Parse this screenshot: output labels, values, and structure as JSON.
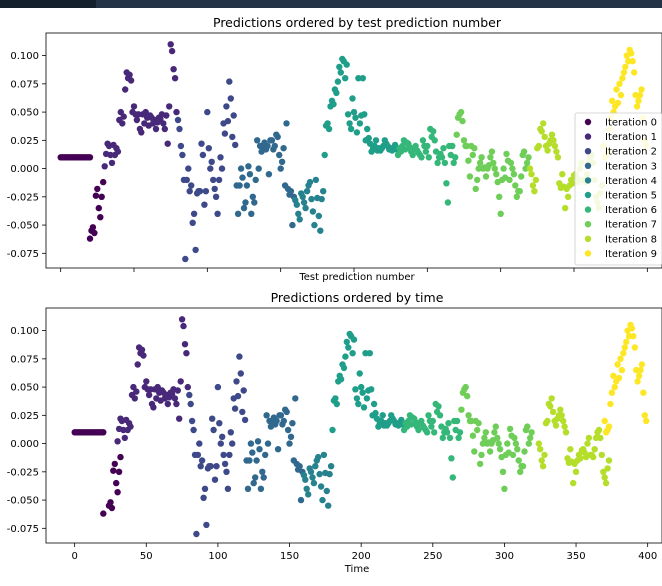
{
  "window": {
    "tab_label": ""
  },
  "colors": [
    "#440154",
    "#482878",
    "#3e4989",
    "#31688e",
    "#26828e",
    "#1f9e89",
    "#35b779",
    "#6ece58",
    "#b5de2b",
    "#fde725"
  ],
  "chart_data": [
    {
      "type": "scatter",
      "title": "Predictions ordered by test prediction number",
      "xlabel": "Test prediction number",
      "ylabel": "",
      "ylim": [
        -0.088,
        0.12
      ],
      "xlim": [
        -10,
        410
      ],
      "x_ticks": [],
      "y_ticks": [
        "0.100",
        "0.075",
        "0.050",
        "0.025",
        "0.000",
        "-0.025",
        "-0.050",
        "-0.075"
      ],
      "y_tick_values": [
        0.1,
        0.075,
        0.05,
        0.025,
        0.0,
        -0.025,
        -0.05,
        -0.075
      ],
      "legend": "right",
      "series": [
        {
          "name": "Iteration 0",
          "x": [
            0,
            1,
            2,
            3,
            4,
            5,
            6,
            7,
            8,
            9,
            10,
            11,
            12,
            13,
            14,
            15,
            16,
            17,
            18,
            19,
            20,
            20,
            21,
            22,
            23,
            24,
            25,
            26,
            27,
            28,
            29
          ],
          "y": [
            0.01,
            0.01,
            0.01,
            0.01,
            0.01,
            0.01,
            0.01,
            0.01,
            0.01,
            0.01,
            0.01,
            0.01,
            0.01,
            0.01,
            0.01,
            0.01,
            0.01,
            0.01,
            0.01,
            0.01,
            0.01,
            -0.062,
            -0.055,
            -0.052,
            -0.057,
            -0.024,
            -0.018,
            -0.035,
            -0.043,
            -0.025,
            -0.012
          ]
        },
        {
          "name": "Iteration 1",
          "x": [
            30,
            31,
            32,
            33,
            34,
            35,
            36,
            37,
            38,
            39,
            40,
            41,
            42,
            43,
            44,
            45,
            46,
            47,
            48,
            49,
            50,
            51,
            52,
            53,
            54,
            55,
            56,
            57,
            58,
            59,
            60,
            61,
            62,
            63,
            64,
            65,
            66,
            67,
            68,
            69,
            70,
            71,
            72,
            73,
            74,
            75,
            76,
            77,
            78,
            79
          ],
          "y": [
            0.002,
            0.013,
            0.022,
            0.02,
            0.012,
            0.005,
            0.021,
            0.012,
            0.018,
            0.015,
            0.043,
            0.05,
            0.04,
            0.046,
            0.07,
            0.085,
            0.08,
            0.083,
            0.078,
            0.05,
            0.055,
            0.048,
            0.043,
            0.048,
            0.035,
            0.032,
            0.048,
            0.04,
            0.05,
            0.045,
            0.038,
            0.047,
            0.045,
            0.04,
            0.043,
            0.035,
            0.041,
            0.045,
            0.044,
            0.048,
            0.04,
            0.035,
            0.047,
            0.022,
            0.055,
            0.11,
            0.104,
            0.088,
            0.08,
            0.05
          ]
        },
        {
          "name": "Iteration 2",
          "x": [
            80,
            81,
            82,
            83,
            84,
            85,
            86,
            87,
            88,
            89,
            90,
            91,
            92,
            93,
            94,
            95,
            96,
            97,
            98,
            99,
            100,
            101,
            102,
            103,
            104,
            105,
            106,
            107,
            108,
            109,
            110,
            111,
            112,
            113,
            114,
            115,
            116,
            117,
            118,
            119
          ],
          "y": [
            0.043,
            0.035,
            0.02,
            0.012,
            -0.01,
            -0.08,
            -0.01,
            0.0,
            -0.02,
            -0.015,
            -0.048,
            -0.04,
            -0.072,
            -0.022,
            -0.02,
            -0.02,
            0.022,
            0.012,
            -0.032,
            -0.02,
            0.05,
            0.018,
            0.0,
            0.006,
            -0.01,
            -0.018,
            -0.025,
            -0.04,
            -0.01,
            0.01,
            0.0,
            0.04,
            0.031,
            0.055,
            0.042,
            0.077,
            0.062,
            0.028,
            0.047,
            0.021
          ]
        },
        {
          "name": "Iteration 3",
          "x": [
            120,
            121,
            122,
            123,
            124,
            125,
            126,
            127,
            128,
            129,
            130,
            131,
            132,
            133,
            134,
            135,
            136,
            137,
            138,
            139,
            140,
            141,
            142,
            143,
            144,
            145,
            146,
            147,
            148,
            149,
            150,
            151,
            152,
            153,
            154,
            155,
            156,
            157,
            158,
            159
          ],
          "y": [
            -0.015,
            -0.04,
            -0.015,
            0.0,
            -0.008,
            -0.035,
            -0.03,
            -0.015,
            0.002,
            -0.005,
            -0.04,
            -0.025,
            -0.03,
            -0.01,
            0.025,
            0.0,
            0.02,
            0.015,
            0.02,
            0.023,
            0.017,
            0.02,
            -0.005,
            0.025,
            0.025,
            0.017,
            0.02,
            0.03,
            0.028,
            0.012,
            0.0,
            0.006,
            0.018,
            -0.015,
            0.04,
            -0.018,
            -0.023,
            -0.02,
            -0.05,
            -0.025
          ]
        },
        {
          "name": "Iteration 4",
          "x": [
            160,
            161,
            162,
            163,
            164,
            165,
            166,
            167,
            168,
            169,
            170,
            171,
            172,
            173,
            174,
            175,
            176,
            177,
            178,
            179
          ],
          "y": [
            -0.028,
            -0.032,
            -0.04,
            -0.045,
            -0.022,
            -0.025,
            -0.03,
            -0.035,
            -0.02,
            -0.015,
            -0.012,
            -0.027,
            -0.038,
            -0.05,
            -0.01,
            -0.026,
            -0.042,
            -0.055,
            -0.027,
            -0.02
          ]
        },
        {
          "name": "Iteration 5",
          "x": [
            180,
            181,
            182,
            183,
            184,
            185,
            186,
            187,
            188,
            189,
            190,
            191,
            192,
            193,
            194,
            195,
            196,
            197,
            198,
            199,
            200,
            201,
            202,
            203,
            204,
            205,
            206,
            207,
            208,
            209,
            210,
            211,
            212,
            213,
            214,
            215,
            216,
            217,
            218,
            219,
            220,
            221,
            222,
            223,
            224,
            225,
            226,
            227,
            228,
            229
          ],
          "y": [
            0.012,
            0.038,
            0.04,
            0.035,
            0.055,
            0.06,
            0.057,
            0.07,
            0.067,
            0.077,
            0.09,
            0.085,
            0.097,
            0.095,
            0.08,
            0.092,
            0.048,
            0.04,
            0.035,
            0.062,
            0.05,
            0.045,
            0.032,
            0.08,
            0.04,
            0.047,
            0.08,
            0.048,
            0.025,
            0.035,
            0.027,
            0.022,
            0.015,
            0.018,
            0.02,
            0.025,
            0.016,
            0.018,
            0.016,
            0.018,
            0.02,
            0.025,
            0.022,
            0.02,
            0.017,
            0.018,
            0.016,
            0.018,
            0.021,
            0.017
          ]
        },
        {
          "name": "Iteration 6",
          "x": [
            230,
            231,
            232,
            233,
            234,
            235,
            236,
            237,
            238,
            239,
            240,
            241,
            242,
            243,
            244,
            245,
            246,
            247,
            248,
            249,
            250,
            251,
            252,
            253,
            254,
            255,
            256,
            257,
            258,
            259,
            260,
            261,
            262,
            263,
            264,
            265,
            266,
            267,
            268,
            269
          ],
          "y": [
            0.012,
            0.018,
            0.015,
            0.02,
            0.025,
            0.017,
            0.023,
            0.022,
            0.019,
            0.015,
            0.012,
            0.018,
            0.02,
            0.016,
            0.014,
            0.012,
            0.01,
            0.025,
            0.02,
            0.015,
            0.02,
            0.01,
            0.035,
            0.028,
            0.033,
            0.025,
            0.015,
            0.005,
            0.01,
            0.013,
            0.01,
            0.018,
            0.005,
            -0.013,
            -0.03,
            0.02,
            0.012,
            0.02,
            0.005,
            0.01
          ]
        },
        {
          "name": "Iteration 7",
          "x": [
            270,
            271,
            272,
            273,
            274,
            275,
            276,
            277,
            278,
            279,
            280,
            281,
            282,
            283,
            284,
            285,
            286,
            287,
            288,
            289,
            290,
            291,
            292,
            293,
            294,
            295,
            296,
            297,
            298,
            299,
            300,
            301,
            302,
            303,
            304,
            305,
            306,
            307,
            308,
            309,
            310,
            311,
            312,
            313,
            314,
            315,
            316,
            317,
            318,
            319
          ],
          "y": [
            0.03,
            0.045,
            0.048,
            0.05,
            0.042,
            0.025,
            0.02,
            0.02,
            0.007,
            -0.007,
            0.02,
            0.012,
            0.018,
            -0.018,
            -0.01,
            0.0,
            0.005,
            0.01,
            0.0,
            0.001,
            -0.007,
            0.0,
            0.003,
            0.01,
            0.015,
            0.005,
            0.0,
            -0.005,
            -0.012,
            -0.025,
            -0.04,
            -0.01,
            0.0,
            -0.008,
            0.013,
            0.007,
            -0.01,
            0.005,
            0.0,
            -0.005,
            -0.015,
            -0.025,
            -0.02,
            -0.02,
            -0.007,
            0.012,
            0.015,
            0.0,
            0.005,
            0.01
          ]
        },
        {
          "name": "Iteration 8",
          "x": [
            320,
            321,
            322,
            323,
            324,
            325,
            326,
            327,
            328,
            329,
            330,
            331,
            332,
            333,
            334,
            335,
            336,
            337,
            338,
            339,
            340,
            341,
            342,
            343,
            344,
            345,
            346,
            347,
            348,
            349,
            350,
            351,
            352,
            353,
            354,
            355,
            356,
            357,
            358,
            359,
            360,
            361,
            362,
            363,
            364,
            365,
            366,
            367,
            368,
            369
          ],
          "y": [
            0.0,
            -0.005,
            -0.015,
            -0.02,
            -0.01,
            0.018,
            0.02,
            0.035,
            0.033,
            0.04,
            0.028,
            0.02,
            0.016,
            0.022,
            0.025,
            0.03,
            0.025,
            0.02,
            0.015,
            0.01,
            -0.013,
            -0.017,
            -0.005,
            -0.016,
            -0.035,
            -0.018,
            -0.025,
            -0.015,
            -0.01,
            -0.013,
            -0.006,
            -0.005,
            -0.008,
            -0.012,
            0.0,
            0.005,
            -0.01,
            -0.01,
            -0.012,
            -0.005,
            0.005,
            0.01,
            0.012,
            0.005,
            -0.01,
            -0.025,
            -0.03,
            -0.035,
            -0.022,
            -0.015
          ]
        },
        {
          "name": "Iteration 9",
          "x": [
            370,
            371,
            372,
            373,
            374,
            375,
            376,
            377,
            378,
            379,
            380,
            381,
            382,
            383,
            384,
            385,
            386,
            387,
            388,
            389,
            390,
            391,
            392,
            393,
            394,
            395,
            396,
            397,
            398,
            399
          ],
          "y": [
            0.02,
            0.01,
            0.012,
            0.015,
            0.035,
            0.045,
            0.06,
            0.05,
            0.055,
            0.07,
            0.058,
            0.075,
            0.065,
            0.08,
            0.085,
            0.09,
            0.1,
            0.095,
            0.105,
            0.102,
            0.095,
            0.085,
            0.065,
            0.055,
            0.06,
            0.065,
            0.07,
            0.045,
            0.025,
            0.02
          ]
        }
      ]
    },
    {
      "type": "scatter",
      "title": "Predictions ordered by time",
      "xlabel": "Time",
      "ylabel": "",
      "ylim": [
        -0.088,
        0.12
      ],
      "xlim": [
        -20,
        410
      ],
      "x_ticks": [
        "0",
        "50",
        "100",
        "150",
        "200",
        "250",
        "300",
        "350",
        "400"
      ],
      "x_tick_values": [
        0,
        50,
        100,
        150,
        200,
        250,
        300,
        350,
        400
      ],
      "y_ticks": [
        "0.100",
        "0.075",
        "0.050",
        "0.025",
        "0.000",
        "-0.025",
        "-0.050",
        "-0.075"
      ],
      "y_tick_values": [
        0.1,
        0.075,
        0.05,
        0.025,
        0.0,
        -0.025,
        -0.05,
        -0.075
      ],
      "legend": "none"
    }
  ]
}
